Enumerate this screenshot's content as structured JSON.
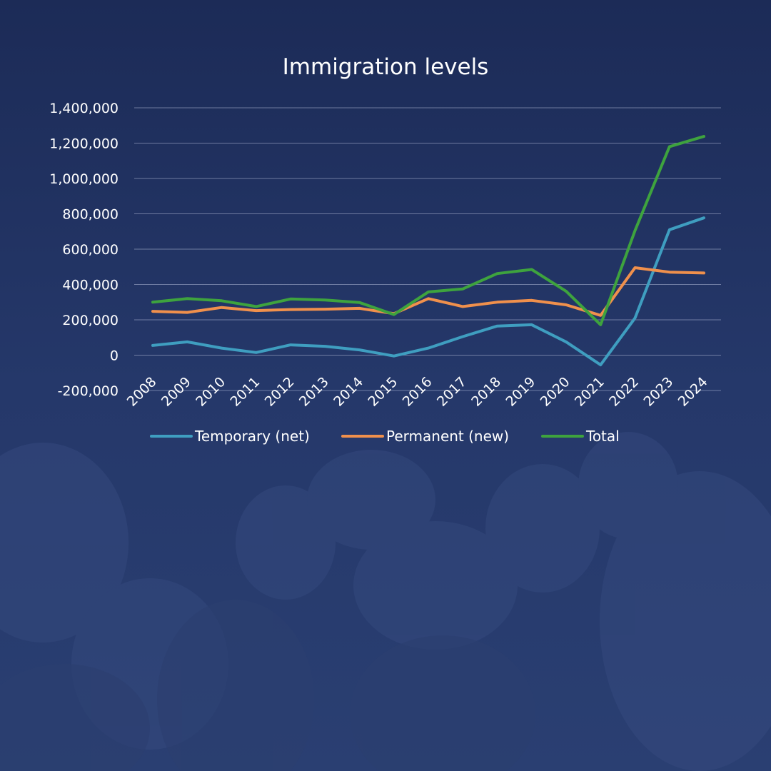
{
  "chart_data": {
    "type": "line",
    "title": "Immigration levels",
    "x": [
      "2008",
      "2009",
      "2010",
      "2011",
      "2012",
      "2013",
      "2014",
      "2015",
      "2016",
      "2017",
      "2018",
      "2019",
      "2020",
      "2021",
      "2022",
      "2023",
      "2024"
    ],
    "y_ticks": [
      "1,400,000",
      "1,200,000",
      "1,000,000",
      "800,000",
      "600,000",
      "400,000",
      "200,000",
      "0",
      "-200,000"
    ],
    "ylim": [
      -200000,
      1400000
    ],
    "grid": true,
    "legend_placement": "bottom",
    "series": [
      {
        "name": "Temporary (net)",
        "color": "#3f9ec0",
        "values": [
          55000,
          75000,
          40000,
          15000,
          58000,
          50000,
          30000,
          -5000,
          40000,
          105000,
          165000,
          172000,
          75000,
          -55000,
          210000,
          710000,
          777000
        ]
      },
      {
        "name": "Permanent (new)",
        "color": "#f0904c",
        "values": [
          248000,
          242000,
          270000,
          252000,
          258000,
          260000,
          265000,
          235000,
          320000,
          275000,
          300000,
          310000,
          285000,
          225000,
          495000,
          470000,
          465000
        ]
      },
      {
        "name": "Total",
        "color": "#3ea33e",
        "values": [
          300000,
          320000,
          308000,
          275000,
          318000,
          312000,
          298000,
          230000,
          358000,
          375000,
          462000,
          485000,
          362000,
          172000,
          705000,
          1180000,
          1238000
        ]
      }
    ]
  }
}
